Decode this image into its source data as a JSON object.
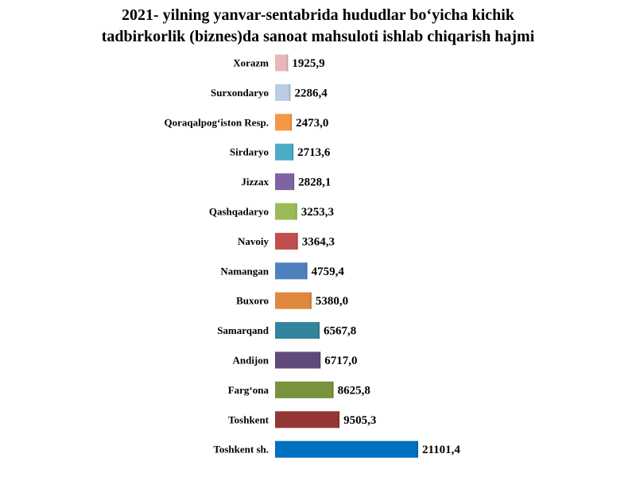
{
  "chart_data": {
    "type": "bar",
    "orientation": "horizontal",
    "title_line1": "2021- yilning yanvar-sentabrida    hududlar  bo‘yicha kichik",
    "title_line2": "tadbirkorlik (biznes)da  sanoat  mahsuloti  ishlab  chiqarish  hajmi",
    "categories": [
      "Xorazm",
      "Surxondaryo",
      "Qoraqalpog‘iston Resp.",
      "Sirdaryo",
      "Jizzax",
      "Qashqadaryo",
      "Navoiy",
      "Namangan",
      "Buxoro",
      "Samarqand",
      "Andijon",
      "Farg‘ona",
      "Toshkent",
      "Toshkent sh."
    ],
    "values": [
      1925.9,
      2286.4,
      2473.0,
      2713.6,
      2828.1,
      3253.3,
      3364.3,
      4759.4,
      5380.0,
      6567.8,
      6717.0,
      8625.8,
      9505.3,
      21101.4
    ],
    "value_labels": [
      "1925,9",
      "2286,4",
      "2473,0",
      "2713,6",
      "2828,1",
      "3253,3",
      "3364,3",
      "4759,4",
      "5380,0",
      "6567,8",
      "6717,0",
      "8625,8",
      "9505,3",
      "21101,4"
    ],
    "colors": [
      "#E6B9B8",
      "#B9CDE5",
      "#F79646",
      "#4BACC6",
      "#8064A2",
      "#9BBB59",
      "#C0504D",
      "#4F81BD",
      "#E0883E",
      "#31849B",
      "#604A7B",
      "#77933C",
      "#953735",
      "#0070C0"
    ],
    "xlim": [
      0,
      21101.4
    ],
    "grid": false,
    "legend": "none"
  }
}
